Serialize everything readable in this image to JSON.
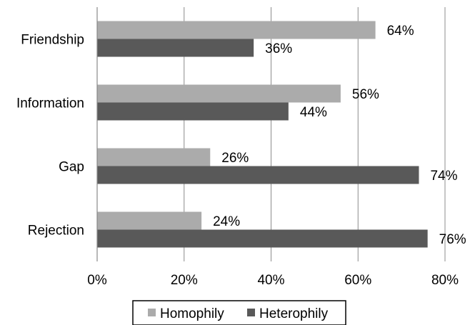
{
  "chart_data": {
    "type": "bar",
    "orientation": "horizontal",
    "categories": [
      "Friendship",
      "Information",
      "Gap",
      "Rejection"
    ],
    "series": [
      {
        "name": "Homophily",
        "values": [
          64,
          56,
          26,
          24
        ],
        "labels": [
          "64%",
          "56%",
          "26%",
          "24%"
        ],
        "color": "#ababab"
      },
      {
        "name": "Heterophily",
        "values": [
          36,
          44,
          74,
          76
        ],
        "labels": [
          "36%",
          "44%",
          "74%",
          "76%"
        ],
        "color": "#595959"
      }
    ],
    "xlim": [
      0,
      80
    ],
    "xticks": [
      0,
      20,
      40,
      60,
      80
    ],
    "xtick_labels": [
      "0%",
      "20%",
      "40%",
      "60%",
      "80%"
    ],
    "grid": true,
    "legend_position": "bottom"
  }
}
